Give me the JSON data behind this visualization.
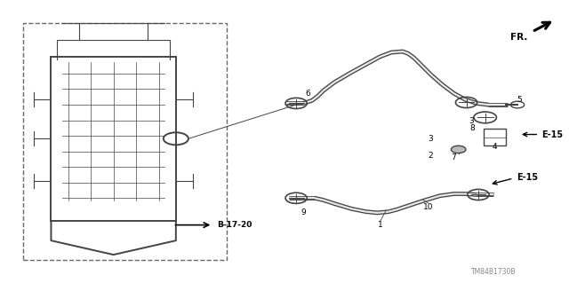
{
  "bg_color": "#ffffff",
  "fig_width": 6.4,
  "fig_height": 3.19,
  "dpi": 100,
  "watermark": "TM84B1730B",
  "fr_label": "FR.",
  "ref_label": "B-17-20",
  "e15_labels": [
    "E-15",
    "E-15"
  ],
  "gray": "#444444",
  "black": "#000000",
  "light": "#e8e8e8"
}
